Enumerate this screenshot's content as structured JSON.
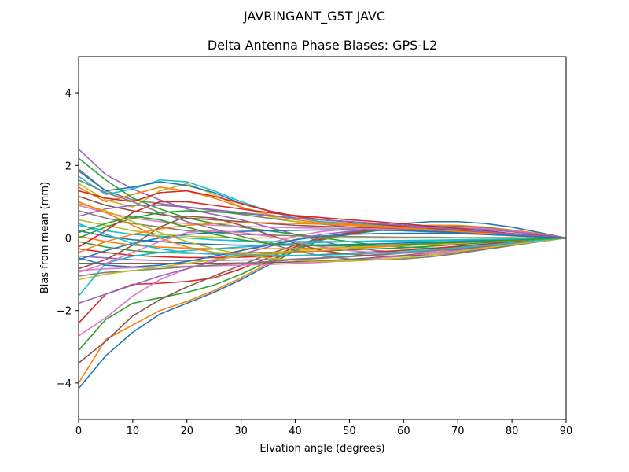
{
  "chart_data": {
    "type": "line",
    "suptitle": "JAVRINGANT_G5T  JAVC",
    "title": "Delta Antenna Phase Biases: GPS-L2",
    "xlabel": "Elvation angle (degrees)",
    "ylabel": "Bias from mean (mm)",
    "xlim": [
      0,
      90
    ],
    "ylim": [
      -5,
      5
    ],
    "xticks": [
      0,
      10,
      20,
      30,
      40,
      50,
      60,
      70,
      80,
      90
    ],
    "yticks": [
      -4,
      -2,
      0,
      2,
      4
    ],
    "grid": false,
    "legend": "none",
    "colors": [
      "#1f77b4",
      "#ff7f0e",
      "#2ca02c",
      "#d62728",
      "#9467bd",
      "#8c564b",
      "#e377c2",
      "#7f7f7f",
      "#bcbd22",
      "#17becf"
    ],
    "x": [
      0,
      5,
      10,
      15,
      20,
      25,
      30,
      35,
      40,
      45,
      50,
      55,
      60,
      65,
      70,
      75,
      80,
      85,
      90
    ],
    "series": [
      {
        "values": [
          -4.15,
          -3.25,
          -2.6,
          -2.1,
          -1.8,
          -1.5,
          -1.15,
          -0.75,
          -0.35,
          -0.05,
          0.15,
          0.3,
          0.4,
          0.45,
          0.45,
          0.4,
          0.3,
          0.15,
          0.0
        ]
      },
      {
        "values": [
          -4.0,
          -2.8,
          -2.4,
          -2.0,
          -1.75,
          -1.45,
          -1.1,
          -0.7,
          -0.3,
          0.0,
          0.15,
          0.25,
          0.32,
          0.35,
          0.35,
          0.3,
          0.22,
          0.12,
          0.0
        ]
      },
      {
        "values": [
          -3.1,
          -2.25,
          -1.8,
          -1.65,
          -1.5,
          -1.3,
          -1.0,
          -0.65,
          -0.3,
          -0.05,
          0.1,
          0.2,
          0.28,
          0.32,
          0.32,
          0.28,
          0.2,
          0.1,
          0.0
        ]
      },
      {
        "values": [
          -2.35,
          -1.55,
          -1.28,
          -1.25,
          -1.2,
          -1.1,
          -0.85,
          -0.55,
          -0.25,
          -0.02,
          0.12,
          0.22,
          0.28,
          0.3,
          0.3,
          0.26,
          0.2,
          0.1,
          0.0
        ]
      },
      {
        "values": [
          2.45,
          1.75,
          1.35,
          1.05,
          0.8,
          0.65,
          0.5,
          0.3,
          0.1,
          -0.1,
          -0.25,
          -0.35,
          -0.4,
          -0.4,
          -0.35,
          -0.28,
          -0.2,
          -0.1,
          0.0
        ]
      },
      {
        "values": [
          -3.45,
          -2.85,
          -2.15,
          -1.7,
          -1.35,
          -1.05,
          -0.75,
          -0.45,
          -0.2,
          0.02,
          0.15,
          0.22,
          0.26,
          0.28,
          0.27,
          0.24,
          0.18,
          0.1,
          0.0
        ]
      },
      {
        "values": [
          -2.7,
          -2.2,
          -1.6,
          -1.15,
          -0.85,
          -0.6,
          -0.35,
          -0.15,
          0.05,
          0.18,
          0.25,
          0.3,
          0.32,
          0.32,
          0.3,
          0.26,
          0.2,
          0.1,
          0.0
        ]
      },
      {
        "values": [
          1.9,
          1.3,
          1.05,
          0.95,
          0.85,
          0.75,
          0.65,
          0.55,
          0.45,
          0.38,
          0.3,
          0.25,
          0.2,
          0.17,
          0.14,
          0.1,
          0.06,
          0.03,
          0.0
        ]
      },
      {
        "values": [
          1.5,
          1.05,
          0.85,
          1.3,
          1.5,
          1.2,
          0.85,
          0.6,
          0.45,
          0.4,
          0.35,
          0.3,
          0.25,
          0.2,
          0.16,
          0.12,
          0.08,
          0.04,
          0.0
        ]
      },
      {
        "values": [
          1.7,
          1.2,
          1.35,
          1.6,
          1.55,
          1.3,
          1.0,
          0.75,
          0.55,
          0.45,
          0.4,
          0.35,
          0.3,
          0.25,
          0.2,
          0.15,
          0.1,
          0.05,
          0.0
        ]
      },
      {
        "values": [
          1.85,
          1.3,
          1.4,
          1.55,
          1.45,
          1.25,
          0.95,
          0.75,
          0.6,
          0.5,
          0.45,
          0.4,
          0.35,
          0.3,
          0.25,
          0.2,
          0.12,
          0.06,
          0.0
        ]
      },
      {
        "values": [
          1.4,
          1.0,
          1.2,
          1.4,
          1.3,
          1.1,
          0.85,
          0.65,
          0.5,
          0.42,
          0.38,
          0.33,
          0.28,
          0.23,
          0.18,
          0.14,
          0.09,
          0.04,
          0.0
        ]
      },
      {
        "values": [
          2.2,
          1.6,
          1.1,
          0.8,
          0.55,
          0.4,
          0.3,
          0.2,
          0.1,
          0.0,
          -0.1,
          -0.2,
          -0.25,
          -0.28,
          -0.26,
          -0.22,
          -0.16,
          -0.08,
          0.0
        ]
      },
      {
        "values": [
          1.3,
          1.1,
          1.0,
          1.25,
          1.3,
          1.15,
          0.95,
          0.75,
          0.6,
          0.5,
          0.44,
          0.38,
          0.32,
          0.26,
          0.2,
          0.15,
          0.1,
          0.05,
          0.0
        ]
      },
      {
        "values": [
          -1.8,
          -1.55,
          -1.3,
          -1.05,
          -0.85,
          -0.65,
          -0.45,
          -0.25,
          -0.05,
          0.1,
          0.18,
          0.24,
          0.27,
          0.28,
          0.27,
          0.23,
          0.17,
          0.09,
          0.0
        ]
      },
      {
        "values": [
          1.15,
          0.9,
          0.75,
          0.65,
          0.55,
          0.5,
          0.45,
          0.4,
          0.35,
          0.32,
          0.3,
          0.27,
          0.24,
          0.2,
          0.16,
          0.12,
          0.08,
          0.04,
          0.0
        ]
      },
      {
        "values": [
          0.9,
          0.7,
          0.55,
          0.45,
          0.4,
          0.35,
          0.32,
          0.3,
          0.28,
          0.27,
          0.26,
          0.25,
          0.22,
          0.19,
          0.15,
          0.11,
          0.07,
          0.03,
          0.0
        ]
      },
      {
        "values": [
          0.75,
          0.55,
          0.4,
          0.3,
          0.2,
          0.15,
          0.1,
          0.08,
          0.06,
          0.05,
          0.04,
          0.03,
          0.02,
          0.02,
          0.01,
          0.01,
          0.01,
          0.0,
          0.0
        ]
      },
      {
        "values": [
          0.5,
          0.35,
          0.2,
          0.1,
          0.05,
          0.02,
          0.0,
          0.0,
          0.0,
          0.0,
          0.0,
          0.0,
          0.0,
          0.0,
          0.0,
          0.0,
          0.0,
          0.0,
          0.0
        ]
      },
      {
        "values": [
          0.35,
          0.2,
          0.1,
          0.05,
          0.0,
          -0.05,
          -0.08,
          -0.1,
          -0.1,
          -0.1,
          -0.1,
          -0.1,
          -0.09,
          -0.08,
          -0.07,
          -0.05,
          -0.03,
          -0.01,
          0.0
        ]
      },
      {
        "values": [
          0.2,
          0.05,
          -0.05,
          -0.1,
          -0.15,
          -0.18,
          -0.2,
          -0.2,
          -0.2,
          -0.19,
          -0.18,
          -0.16,
          -0.14,
          -0.12,
          -0.1,
          -0.07,
          -0.05,
          -0.02,
          0.0
        ]
      },
      {
        "values": [
          0.05,
          -0.1,
          -0.2,
          -0.25,
          -0.28,
          -0.3,
          -0.3,
          -0.3,
          -0.29,
          -0.28,
          -0.26,
          -0.24,
          -0.21,
          -0.18,
          -0.14,
          -0.1,
          -0.07,
          -0.03,
          0.0
        ]
      },
      {
        "values": [
          -0.1,
          -0.25,
          -0.35,
          -0.4,
          -0.42,
          -0.42,
          -0.41,
          -0.4,
          -0.38,
          -0.36,
          -0.33,
          -0.3,
          -0.27,
          -0.23,
          -0.18,
          -0.13,
          -0.09,
          -0.04,
          0.0
        ]
      },
      {
        "values": [
          -0.3,
          -0.4,
          -0.48,
          -0.52,
          -0.54,
          -0.54,
          -0.53,
          -0.51,
          -0.49,
          -0.46,
          -0.42,
          -0.38,
          -0.34,
          -0.29,
          -0.23,
          -0.17,
          -0.11,
          -0.05,
          0.0
        ]
      },
      {
        "values": [
          -0.5,
          -0.55,
          -0.6,
          -0.62,
          -0.62,
          -0.62,
          -0.61,
          -0.6,
          -0.58,
          -0.55,
          -0.51,
          -0.46,
          -0.41,
          -0.35,
          -0.28,
          -0.21,
          -0.14,
          -0.07,
          0.0
        ]
      },
      {
        "values": [
          -0.7,
          -0.7,
          -0.7,
          -0.7,
          -0.7,
          -0.7,
          -0.69,
          -0.68,
          -0.66,
          -0.63,
          -0.59,
          -0.54,
          -0.48,
          -0.41,
          -0.33,
          -0.25,
          -0.17,
          -0.08,
          0.0
        ]
      },
      {
        "values": [
          -0.9,
          -0.85,
          -0.82,
          -0.8,
          -0.78,
          -0.77,
          -0.75,
          -0.73,
          -0.7,
          -0.67,
          -0.62,
          -0.56,
          -0.5,
          -0.43,
          -0.35,
          -0.27,
          -0.18,
          -0.09,
          0.0
        ]
      },
      {
        "values": [
          -1.05,
          -0.95,
          -0.9,
          -0.85,
          -0.8,
          -0.75,
          -0.7,
          -0.65,
          -0.6,
          -0.56,
          -0.52,
          -0.47,
          -0.42,
          -0.36,
          -0.3,
          -0.23,
          -0.16,
          -0.08,
          0.0
        ]
      },
      {
        "values": [
          -1.15,
          -1.0,
          -0.9,
          -0.8,
          -0.7,
          -0.6,
          -0.5,
          -0.42,
          -0.35,
          -0.3,
          -0.26,
          -0.22,
          -0.19,
          -0.16,
          -0.13,
          -0.1,
          -0.07,
          -0.03,
          0.0
        ]
      },
      {
        "values": [
          -1.6,
          -0.7,
          -0.5,
          -0.4,
          -0.35,
          -0.3,
          -0.25,
          -0.2,
          -0.15,
          -0.12,
          -0.1,
          -0.08,
          -0.07,
          -0.06,
          -0.05,
          -0.04,
          -0.03,
          -0.01,
          0.0
        ]
      },
      {
        "values": [
          -0.6,
          -0.35,
          -0.15,
          0.0,
          0.1,
          0.15,
          0.18,
          0.2,
          0.21,
          0.22,
          0.22,
          0.21,
          0.2,
          0.18,
          0.15,
          0.11,
          0.07,
          0.03,
          0.0
        ]
      },
      {
        "values": [
          -0.4,
          -0.1,
          0.1,
          0.25,
          0.35,
          0.4,
          0.42,
          0.42,
          0.4,
          0.38,
          0.35,
          0.31,
          0.27,
          0.23,
          0.18,
          0.13,
          0.09,
          0.04,
          0.0
        ]
      },
      {
        "values": [
          0.0,
          0.3,
          0.55,
          0.7,
          0.75,
          0.72,
          0.68,
          0.62,
          0.55,
          0.5,
          0.45,
          0.4,
          0.35,
          0.29,
          0.23,
          0.17,
          0.11,
          0.05,
          0.0
        ]
      },
      {
        "values": [
          -0.25,
          0.2,
          0.7,
          1.0,
          1.0,
          0.9,
          0.8,
          0.7,
          0.62,
          0.56,
          0.5,
          0.45,
          0.39,
          0.33,
          0.26,
          0.19,
          0.12,
          0.06,
          0.0
        ]
      },
      {
        "values": [
          0.6,
          0.8,
          0.9,
          0.9,
          0.85,
          0.78,
          0.7,
          0.62,
          0.55,
          0.5,
          0.45,
          0.4,
          0.35,
          0.29,
          0.23,
          0.17,
          0.11,
          0.05,
          0.0
        ]
      },
      {
        "values": [
          -0.85,
          -0.6,
          -0.2,
          0.3,
          0.6,
          0.55,
          0.35,
          0.1,
          -0.15,
          -0.35,
          -0.45,
          -0.5,
          -0.5,
          -0.47,
          -0.4,
          -0.3,
          -0.2,
          -0.1,
          0.0
        ]
      },
      {
        "values": [
          -0.95,
          -0.7,
          -0.4,
          -0.1,
          0.15,
          0.2,
          0.15,
          0.05,
          -0.1,
          -0.25,
          -0.35,
          -0.4,
          -0.42,
          -0.4,
          -0.35,
          -0.27,
          -0.18,
          -0.09,
          0.0
        ]
      },
      {
        "values": [
          1.6,
          1.25,
          1.0,
          0.7,
          0.45,
          0.25,
          0.05,
          -0.15,
          -0.35,
          -0.5,
          -0.58,
          -0.6,
          -0.58,
          -0.52,
          -0.43,
          -0.32,
          -0.21,
          -0.1,
          0.0
        ]
      },
      {
        "values": [
          0.95,
          0.75,
          0.45,
          0.15,
          -0.1,
          -0.3,
          -0.45,
          -0.55,
          -0.62,
          -0.65,
          -0.64,
          -0.6,
          -0.55,
          -0.47,
          -0.38,
          -0.28,
          -0.18,
          -0.09,
          0.0
        ]
      },
      {
        "values": [
          0.4,
          0.1,
          -0.15,
          -0.3,
          -0.4,
          -0.45,
          -0.47,
          -0.48,
          -0.48,
          -0.47,
          -0.45,
          -0.42,
          -0.38,
          -0.33,
          -0.27,
          -0.2,
          -0.13,
          -0.06,
          0.0
        ]
      },
      {
        "values": [
          -0.55,
          -0.75,
          -0.8,
          -0.75,
          -0.65,
          -0.5,
          -0.35,
          -0.2,
          -0.05,
          0.05,
          0.1,
          0.12,
          0.13,
          0.13,
          0.12,
          0.1,
          0.07,
          0.03,
          0.0
        ]
      },
      {
        "values": [
          1.0,
          0.7,
          0.35,
          0.0,
          -0.25,
          -0.4,
          -0.45,
          -0.45,
          -0.4,
          -0.35,
          -0.3,
          -0.25,
          -0.21,
          -0.17,
          -0.13,
          -0.1,
          -0.07,
          -0.03,
          0.0
        ]
      },
      {
        "values": [
          0.15,
          0.4,
          0.6,
          0.5,
          0.3,
          0.1,
          -0.05,
          -0.15,
          -0.2,
          -0.22,
          -0.22,
          -0.2,
          -0.18,
          -0.15,
          -0.12,
          -0.09,
          -0.06,
          -0.03,
          0.0
        ]
      }
    ]
  }
}
